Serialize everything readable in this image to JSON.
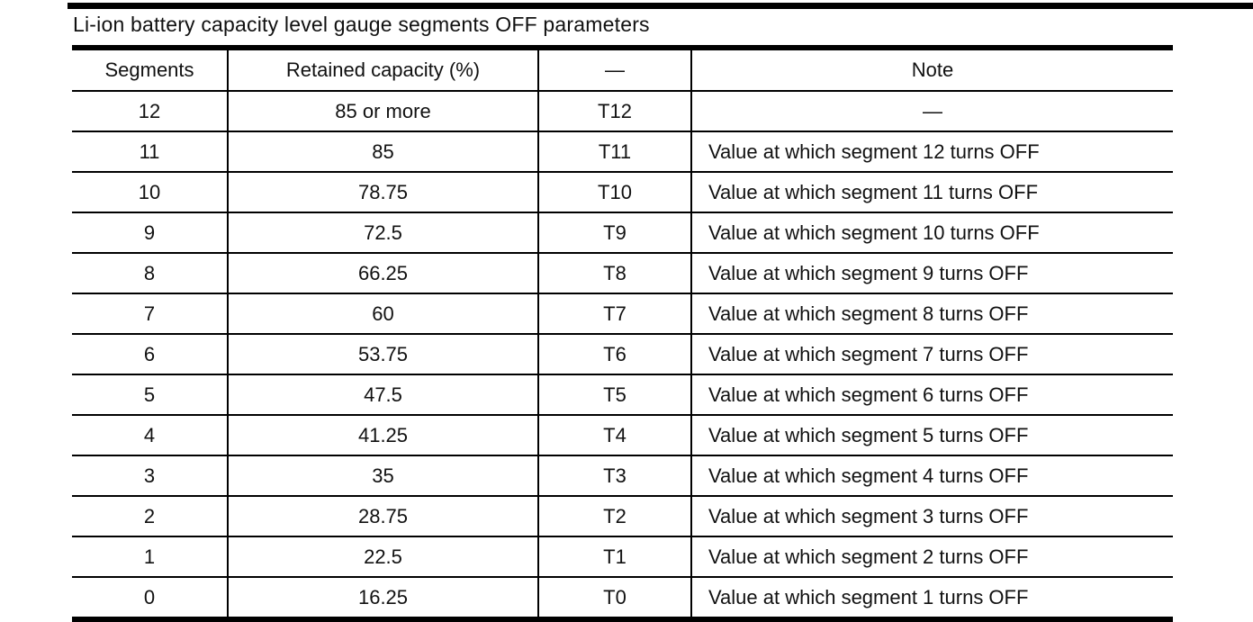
{
  "page": {
    "title": "Li-ion battery capacity level gauge segments OFF parameters"
  },
  "colors": {
    "ink": "#111111",
    "paper": "#ffffff"
  },
  "table": {
    "columns": [
      "Segments",
      "Retained capacity (%)",
      "—",
      "Note"
    ],
    "rows": [
      {
        "segments": "12",
        "retained_capacity": "85 or more",
        "threshold": "T12",
        "note": "—"
      },
      {
        "segments": "11",
        "retained_capacity": "85",
        "threshold": "T11",
        "note": "Value at which segment 12 turns OFF"
      },
      {
        "segments": "10",
        "retained_capacity": "78.75",
        "threshold": "T10",
        "note": "Value at which segment 11 turns OFF"
      },
      {
        "segments": "9",
        "retained_capacity": "72.5",
        "threshold": "T9",
        "note": "Value at which segment 10 turns OFF"
      },
      {
        "segments": "8",
        "retained_capacity": "66.25",
        "threshold": "T8",
        "note": "Value at which segment 9 turns OFF"
      },
      {
        "segments": "7",
        "retained_capacity": "60",
        "threshold": "T7",
        "note": "Value at which segment 8 turns OFF"
      },
      {
        "segments": "6",
        "retained_capacity": "53.75",
        "threshold": "T6",
        "note": "Value at which segment 7 turns OFF"
      },
      {
        "segments": "5",
        "retained_capacity": "47.5",
        "threshold": "T5",
        "note": "Value at which segment 6 turns OFF"
      },
      {
        "segments": "4",
        "retained_capacity": "41.25",
        "threshold": "T4",
        "note": "Value at which segment 5 turns OFF"
      },
      {
        "segments": "3",
        "retained_capacity": "35",
        "threshold": "T3",
        "note": "Value at which segment 4 turns OFF"
      },
      {
        "segments": "2",
        "retained_capacity": "28.75",
        "threshold": "T2",
        "note": "Value at which segment 3 turns OFF"
      },
      {
        "segments": "1",
        "retained_capacity": "22.5",
        "threshold": "T1",
        "note": "Value at which segment 2 turns OFF"
      },
      {
        "segments": "0",
        "retained_capacity": "16.25",
        "threshold": "T0",
        "note": "Value at which segment 1 turns OFF"
      }
    ]
  }
}
